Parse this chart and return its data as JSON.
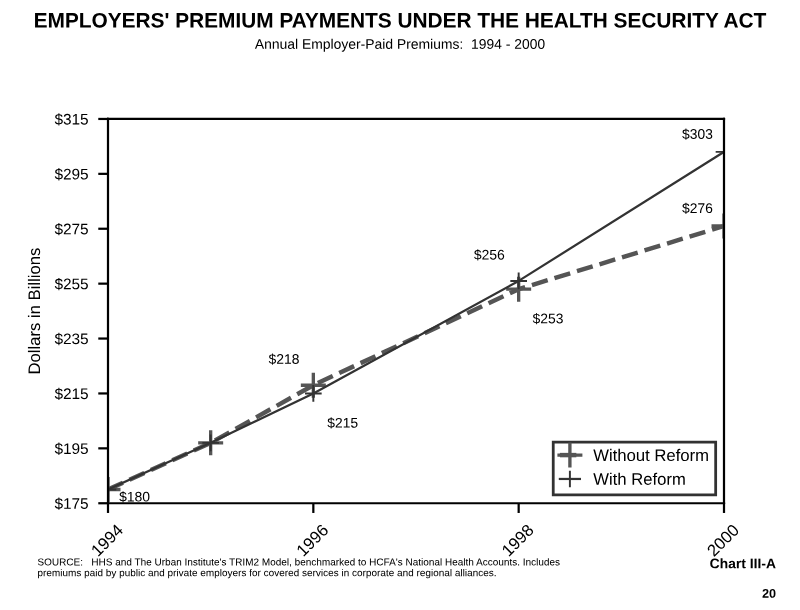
{
  "chart_data": {
    "type": "line",
    "title": "EMPLOYERS' PREMIUM PAYMENTS UNDER THE HEALTH SECURITY ACT",
    "subtitle": "Annual Employer-Paid Premiums:  1994 - 2000",
    "ylabel": "Dollars in Billions",
    "x": [
      1994,
      1995,
      1996,
      1998,
      2000
    ],
    "series": [
      {
        "name": "Without Reform",
        "color": "#555555",
        "line_style": "dashed",
        "marker": "cross",
        "values": [
          180,
          197,
          218,
          253,
          276
        ],
        "value_labels": [
          null,
          null,
          "$218",
          "$253",
          "$276"
        ]
      },
      {
        "name": "With Reform",
        "color": "#333333",
        "line_style": "solid",
        "marker": "cross",
        "values": [
          180,
          197,
          215,
          256,
          303
        ],
        "value_labels": [
          "$180",
          null,
          "$215",
          "$256",
          "$303"
        ]
      }
    ],
    "xlim": [
      1994,
      2000
    ],
    "xticks": [
      1994,
      1996,
      1998,
      2000
    ],
    "ylim": [
      175,
      315
    ],
    "yticks": [
      {
        "value": 175,
        "label": "$175"
      },
      {
        "value": 195,
        "label": "$195"
      },
      {
        "value": 215,
        "label": "$215"
      },
      {
        "value": 235,
        "label": "$235"
      },
      {
        "value": 255,
        "label": "$255"
      },
      {
        "value": 275,
        "label": "$275"
      },
      {
        "value": 295,
        "label": "$295"
      },
      {
        "value": 315,
        "label": "$315"
      }
    ],
    "grid": false,
    "legend": "bottom right",
    "annotations": [
      "SOURCE:   HHS and The Urban Institute's TRIM2 Model, benchmarked to HCFA's National Health Accounts. Includes premiums paid by public and private employers for covered services in corporate and regional alliances.",
      "Chart III-A",
      "20"
    ]
  }
}
